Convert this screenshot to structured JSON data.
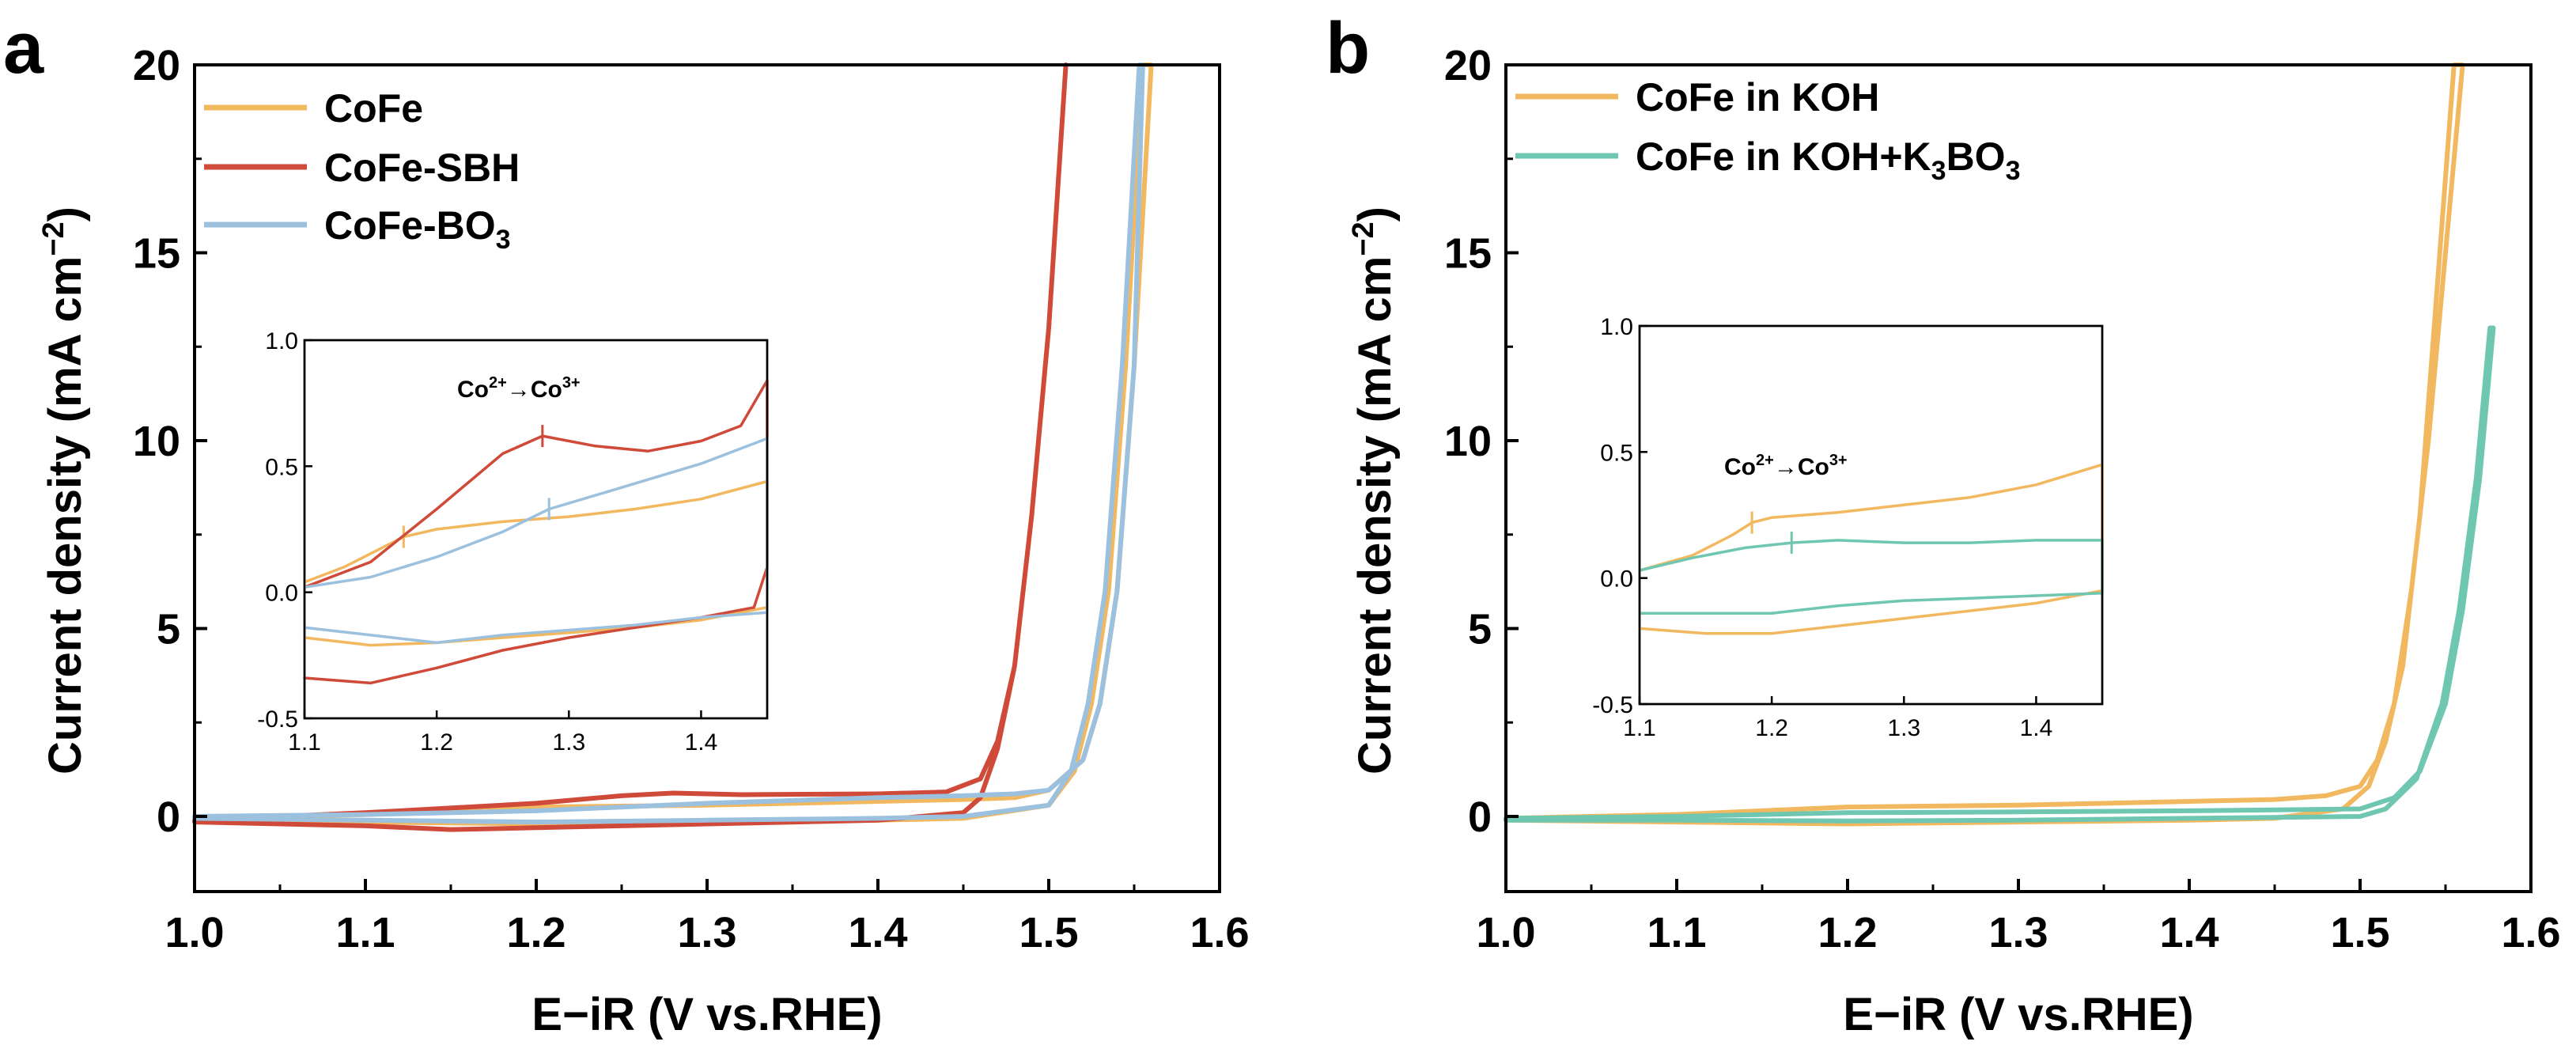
{
  "chart_data": [
    {
      "type": "line",
      "panel_label": "a",
      "xlabel": "E−iR (V vs.RHE)",
      "ylabel": "Current density (mA cm",
      "ylabel_sup": "−2",
      "ylabel_tail": ")",
      "xlim": [
        1.0,
        1.6
      ],
      "ylim": [
        -2,
        20
      ],
      "xticks": [
        "1.0",
        "1.1",
        "1.2",
        "1.3",
        "1.4",
        "1.5",
        "1.6"
      ],
      "yticks": [
        "0",
        "5",
        "10",
        "15",
        "20"
      ],
      "legend_position": "top-left",
      "series": [
        {
          "name": "CoFe",
          "name_sub": "",
          "color": "#F2B860",
          "forward": [
            [
              1.0,
              -0.05
            ],
            [
              1.1,
              0.05
            ],
            [
              1.15,
              0.15
            ],
            [
              1.2,
              0.25
            ],
            [
              1.3,
              0.3
            ],
            [
              1.4,
              0.4
            ],
            [
              1.45,
              0.45
            ],
            [
              1.48,
              0.5
            ],
            [
              1.5,
              0.7
            ],
            [
              1.52,
              1.5
            ],
            [
              1.53,
              3
            ],
            [
              1.54,
              6
            ],
            [
              1.55,
              12
            ],
            [
              1.56,
              20
            ]
          ],
          "reverse": [
            [
              1.555,
              20
            ],
            [
              1.545,
              12
            ],
            [
              1.535,
              6
            ],
            [
              1.525,
              3
            ],
            [
              1.515,
              1.2
            ],
            [
              1.5,
              0.3
            ],
            [
              1.45,
              -0.05
            ],
            [
              1.4,
              -0.1
            ],
            [
              1.3,
              -0.15
            ],
            [
              1.2,
              -0.2
            ],
            [
              1.1,
              -0.15
            ],
            [
              1.0,
              -0.1
            ]
          ]
        },
        {
          "name": "CoFe-SBH",
          "name_sub": "",
          "color": "#D04A3A",
          "forward": [
            [
              1.0,
              -0.1
            ],
            [
              1.1,
              0.1
            ],
            [
              1.2,
              0.35
            ],
            [
              1.25,
              0.55
            ],
            [
              1.28,
              0.62
            ],
            [
              1.32,
              0.58
            ],
            [
              1.4,
              0.6
            ],
            [
              1.44,
              0.65
            ],
            [
              1.46,
              1.0
            ],
            [
              1.47,
              2
            ],
            [
              1.48,
              4
            ],
            [
              1.49,
              8
            ],
            [
              1.5,
              13
            ],
            [
              1.51,
              20
            ]
          ],
          "reverse": [
            [
              1.51,
              20
            ],
            [
              1.5,
              13
            ],
            [
              1.49,
              8
            ],
            [
              1.48,
              4
            ],
            [
              1.47,
              1.8
            ],
            [
              1.46,
              0.5
            ],
            [
              1.45,
              0.1
            ],
            [
              1.4,
              -0.1
            ],
            [
              1.3,
              -0.2
            ],
            [
              1.2,
              -0.3
            ],
            [
              1.15,
              -0.35
            ],
            [
              1.1,
              -0.25
            ],
            [
              1.0,
              -0.15
            ]
          ]
        },
        {
          "name": "CoFe-BO",
          "name_sub": "3",
          "color": "#9CC1DE",
          "forward": [
            [
              1.0,
              0.0
            ],
            [
              1.1,
              0.05
            ],
            [
              1.2,
              0.15
            ],
            [
              1.3,
              0.35
            ],
            [
              1.4,
              0.5
            ],
            [
              1.45,
              0.55
            ],
            [
              1.48,
              0.6
            ],
            [
              1.5,
              0.7
            ],
            [
              1.52,
              1.5
            ],
            [
              1.53,
              3
            ],
            [
              1.54,
              6
            ],
            [
              1.55,
              12
            ],
            [
              1.555,
              20
            ]
          ],
          "reverse": [
            [
              1.553,
              20
            ],
            [
              1.543,
              12
            ],
            [
              1.533,
              6
            ],
            [
              1.523,
              3
            ],
            [
              1.513,
              1.2
            ],
            [
              1.5,
              0.3
            ],
            [
              1.45,
              0.0
            ],
            [
              1.4,
              -0.05
            ],
            [
              1.3,
              -0.1
            ],
            [
              1.2,
              -0.15
            ],
            [
              1.1,
              -0.1
            ],
            [
              1.0,
              -0.05
            ]
          ]
        }
      ],
      "inset": {
        "xlim": [
          1.1,
          1.45
        ],
        "ylim": [
          -0.5,
          1.0
        ],
        "xticks": [
          "1.1",
          "1.2",
          "1.3",
          "1.4"
        ],
        "yticks": [
          "1.0",
          "0.5",
          "0.0",
          "-0.5"
        ],
        "annotation": {
          "base": "Co",
          "sup1": "2+",
          "arrow": "→",
          "base2": "Co",
          "sup2": "3+"
        },
        "series": [
          {
            "name": "CoFe",
            "color": "#F2B860",
            "forward": [
              [
                1.1,
                0.04
              ],
              [
                1.13,
                0.1
              ],
              [
                1.16,
                0.18
              ],
              [
                1.175,
                0.22
              ],
              [
                1.2,
                0.25
              ],
              [
                1.25,
                0.28
              ],
              [
                1.3,
                0.3
              ],
              [
                1.35,
                0.33
              ],
              [
                1.4,
                0.37
              ],
              [
                1.45,
                0.44
              ]
            ],
            "reverse": [
              [
                1.45,
                -0.06
              ],
              [
                1.4,
                -0.11
              ],
              [
                1.35,
                -0.14
              ],
              [
                1.3,
                -0.16
              ],
              [
                1.25,
                -0.18
              ],
              [
                1.2,
                -0.2
              ],
              [
                1.15,
                -0.21
              ],
              [
                1.1,
                -0.18
              ]
            ],
            "peak_x": 1.175
          },
          {
            "name": "CoFe-SBH",
            "color": "#D04A3A",
            "forward": [
              [
                1.1,
                0.02
              ],
              [
                1.15,
                0.12
              ],
              [
                1.2,
                0.33
              ],
              [
                1.25,
                0.55
              ],
              [
                1.28,
                0.62
              ],
              [
                1.32,
                0.58
              ],
              [
                1.36,
                0.56
              ],
              [
                1.4,
                0.6
              ],
              [
                1.43,
                0.66
              ],
              [
                1.45,
                0.84
              ]
            ],
            "reverse": [
              [
                1.45,
                0.1
              ],
              [
                1.44,
                -0.06
              ],
              [
                1.4,
                -0.1
              ],
              [
                1.35,
                -0.14
              ],
              [
                1.3,
                -0.18
              ],
              [
                1.25,
                -0.23
              ],
              [
                1.2,
                -0.3
              ],
              [
                1.15,
                -0.36
              ],
              [
                1.1,
                -0.34
              ]
            ],
            "peak_x": 1.28
          },
          {
            "name": "CoFe-BO3",
            "color": "#9CC1DE",
            "forward": [
              [
                1.1,
                0.02
              ],
              [
                1.15,
                0.06
              ],
              [
                1.2,
                0.14
              ],
              [
                1.25,
                0.24
              ],
              [
                1.285,
                0.33
              ],
              [
                1.33,
                0.4
              ],
              [
                1.4,
                0.51
              ],
              [
                1.45,
                0.61
              ]
            ],
            "reverse": [
              [
                1.45,
                -0.08
              ],
              [
                1.4,
                -0.1
              ],
              [
                1.35,
                -0.13
              ],
              [
                1.3,
                -0.15
              ],
              [
                1.25,
                -0.17
              ],
              [
                1.2,
                -0.2
              ],
              [
                1.15,
                -0.17
              ],
              [
                1.1,
                -0.14
              ]
            ],
            "peak_x": 1.285
          }
        ]
      }
    },
    {
      "type": "line",
      "panel_label": "b",
      "xlabel": "E−iR (V vs.RHE)",
      "ylabel": "Current density (mA cm",
      "ylabel_sup": "−2",
      "ylabel_tail": ")",
      "xlim": [
        1.0,
        1.6
      ],
      "ylim": [
        -2,
        20
      ],
      "xticks": [
        "1.0",
        "1.1",
        "1.2",
        "1.3",
        "1.4",
        "1.5",
        "1.6"
      ],
      "yticks": [
        "0",
        "5",
        "10",
        "15",
        "20"
      ],
      "legend_position": "top-left",
      "series": [
        {
          "name": "CoFe in KOH",
          "name_sub": "",
          "color": "#F2B860",
          "forward": [
            [
              1.0,
              -0.05
            ],
            [
              1.1,
              0.05
            ],
            [
              1.15,
              0.15
            ],
            [
              1.2,
              0.25
            ],
            [
              1.3,
              0.3
            ],
            [
              1.4,
              0.4
            ],
            [
              1.45,
              0.45
            ],
            [
              1.48,
              0.55
            ],
            [
              1.5,
              0.8
            ],
            [
              1.51,
              1.5
            ],
            [
              1.52,
              3
            ],
            [
              1.53,
              6
            ],
            [
              1.54,
              10
            ],
            [
              1.55,
              15
            ],
            [
              1.56,
              20
            ]
          ],
          "reverse": [
            [
              1.555,
              20
            ],
            [
              1.545,
              14
            ],
            [
              1.535,
              8
            ],
            [
              1.525,
              4
            ],
            [
              1.515,
              2
            ],
            [
              1.505,
              0.8
            ],
            [
              1.49,
              0.2
            ],
            [
              1.45,
              -0.05
            ],
            [
              1.4,
              -0.1
            ],
            [
              1.3,
              -0.15
            ],
            [
              1.2,
              -0.2
            ],
            [
              1.1,
              -0.15
            ],
            [
              1.0,
              -0.1
            ]
          ]
        },
        {
          "name": "CoFe in KOH+K",
          "name_sub": "3",
          "name_tail": "BO",
          "name_sub2": "3",
          "color": "#6FC7B1",
          "forward": [
            [
              1.0,
              -0.05
            ],
            [
              1.1,
              0.0
            ],
            [
              1.2,
              0.1
            ],
            [
              1.3,
              0.12
            ],
            [
              1.4,
              0.15
            ],
            [
              1.5,
              0.2
            ],
            [
              1.52,
              0.5
            ],
            [
              1.535,
              1.2
            ],
            [
              1.55,
              3
            ],
            [
              1.56,
              5.5
            ],
            [
              1.57,
              9
            ],
            [
              1.578,
              13
            ]
          ],
          "reverse": [
            [
              1.576,
              13
            ],
            [
              1.568,
              9
            ],
            [
              1.558,
              5.5
            ],
            [
              1.548,
              3
            ],
            [
              1.533,
              1
            ],
            [
              1.515,
              0.2
            ],
            [
              1.5,
              0.0
            ],
            [
              1.4,
              -0.05
            ],
            [
              1.3,
              -0.1
            ],
            [
              1.2,
              -0.12
            ],
            [
              1.1,
              -0.1
            ],
            [
              1.0,
              -0.1
            ]
          ]
        }
      ],
      "inset": {
        "xlim": [
          1.1,
          1.45
        ],
        "ylim": [
          -0.5,
          1.0
        ],
        "xticks": [
          "1.1",
          "1.2",
          "1.3",
          "1.4"
        ],
        "yticks": [
          "1.0",
          "0.5",
          "0.0",
          "-0.5"
        ],
        "annotation": {
          "base": "Co",
          "sup1": "2+",
          "arrow": "→",
          "base2": "Co",
          "sup2": "3+"
        },
        "series": [
          {
            "name": "CoFe in KOH",
            "color": "#F2B860",
            "forward": [
              [
                1.1,
                0.03
              ],
              [
                1.14,
                0.09
              ],
              [
                1.17,
                0.17
              ],
              [
                1.185,
                0.22
              ],
              [
                1.2,
                0.24
              ],
              [
                1.25,
                0.26
              ],
              [
                1.3,
                0.29
              ],
              [
                1.35,
                0.32
              ],
              [
                1.4,
                0.37
              ],
              [
                1.45,
                0.45
              ]
            ],
            "reverse": [
              [
                1.45,
                -0.05
              ],
              [
                1.4,
                -0.1
              ],
              [
                1.35,
                -0.13
              ],
              [
                1.3,
                -0.16
              ],
              [
                1.25,
                -0.19
              ],
              [
                1.2,
                -0.22
              ],
              [
                1.15,
                -0.22
              ],
              [
                1.1,
                -0.2
              ]
            ],
            "peak_x": 1.185
          },
          {
            "name": "CoFe in KOH+K3BO3",
            "color": "#6FC7B1",
            "forward": [
              [
                1.1,
                0.03
              ],
              [
                1.14,
                0.08
              ],
              [
                1.18,
                0.12
              ],
              [
                1.215,
                0.14
              ],
              [
                1.25,
                0.15
              ],
              [
                1.3,
                0.14
              ],
              [
                1.35,
                0.14
              ],
              [
                1.4,
                0.15
              ],
              [
                1.45,
                0.15
              ]
            ],
            "reverse": [
              [
                1.45,
                -0.06
              ],
              [
                1.4,
                -0.07
              ],
              [
                1.35,
                -0.08
              ],
              [
                1.3,
                -0.09
              ],
              [
                1.25,
                -0.11
              ],
              [
                1.2,
                -0.14
              ],
              [
                1.15,
                -0.14
              ],
              [
                1.1,
                -0.14
              ]
            ],
            "peak_x": 1.215
          }
        ]
      }
    }
  ]
}
